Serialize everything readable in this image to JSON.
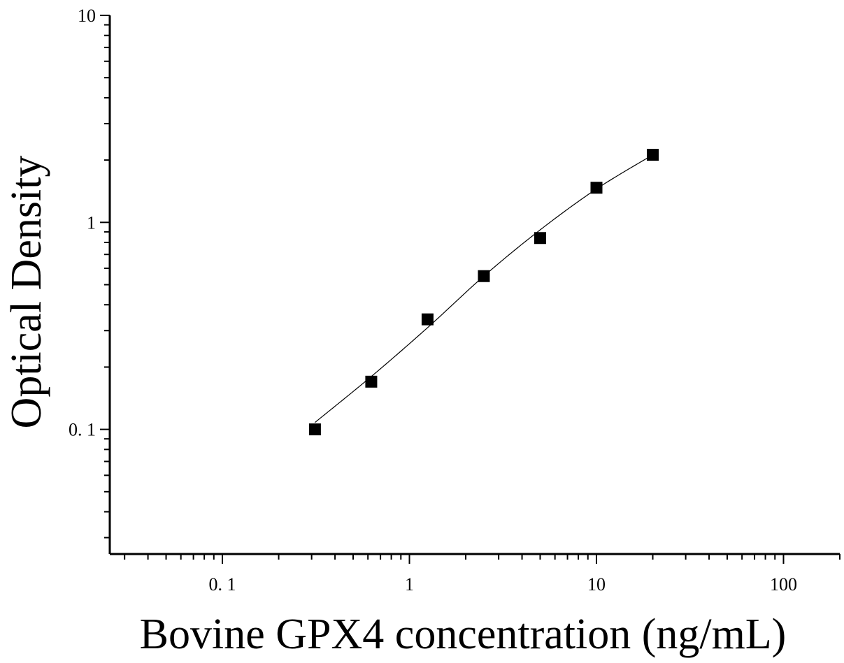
{
  "chart_data": {
    "type": "scatter",
    "title": "",
    "xlabel": "Bovine GPX4 concentration (ng/mL)",
    "ylabel": "Optical Density",
    "xscale": "log",
    "yscale": "log",
    "xlim": [
      0.025,
      200
    ],
    "ylim": [
      0.025,
      10
    ],
    "x_ticks": [
      {
        "value": 0.1,
        "label": "0. 1"
      },
      {
        "value": 1,
        "label": "1"
      },
      {
        "value": 10,
        "label": "10"
      },
      {
        "value": 100,
        "label": "100"
      }
    ],
    "y_ticks": [
      {
        "value": 0.1,
        "label": "0. 1"
      },
      {
        "value": 1,
        "label": "1"
      },
      {
        "value": 10,
        "label": "10"
      }
    ],
    "grid": false,
    "legend": "none",
    "series": [
      {
        "marker": "square",
        "color": "#000000",
        "points": [
          {
            "x": 0.3125,
            "y": 0.1
          },
          {
            "x": 0.625,
            "y": 0.17
          },
          {
            "x": 1.25,
            "y": 0.34
          },
          {
            "x": 2.5,
            "y": 0.55
          },
          {
            "x": 5,
            "y": 0.84
          },
          {
            "x": 10,
            "y": 1.47
          },
          {
            "x": 20,
            "y": 2.12
          }
        ]
      }
    ],
    "fit_curve": {
      "color": "#000000",
      "points": [
        {
          "x": 0.3125,
          "y": 0.108
        },
        {
          "x": 0.625,
          "y": 0.18
        },
        {
          "x": 1.25,
          "y": 0.31
        },
        {
          "x": 2.5,
          "y": 0.55
        },
        {
          "x": 5,
          "y": 0.92
        },
        {
          "x": 10,
          "y": 1.45
        },
        {
          "x": 20,
          "y": 2.12
        }
      ]
    }
  }
}
